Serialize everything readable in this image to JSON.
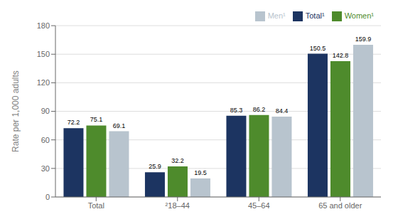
{
  "chart_data": {
    "type": "bar",
    "categories": [
      "Total",
      "²18–44",
      "45–64",
      "65 and older"
    ],
    "series": [
      {
        "name": "Total¹",
        "color": "#1c3461",
        "values": [
          72.2,
          25.9,
          85.3,
          150.5
        ]
      },
      {
        "name": "Women¹",
        "color": "#4e8b2c",
        "values": [
          75.1,
          32.2,
          86.2,
          142.8
        ]
      },
      {
        "name": "Men¹",
        "color": "#b8c4ce",
        "values": [
          69.1,
          19.5,
          84.4,
          159.9
        ]
      }
    ],
    "ylabel": "Rate per 1,000 adults",
    "ylim": [
      0,
      180
    ],
    "yticks": [
      0,
      30,
      60,
      90,
      120,
      150,
      180
    ],
    "grid": true,
    "legend": "upper right",
    "data_labels": true
  }
}
